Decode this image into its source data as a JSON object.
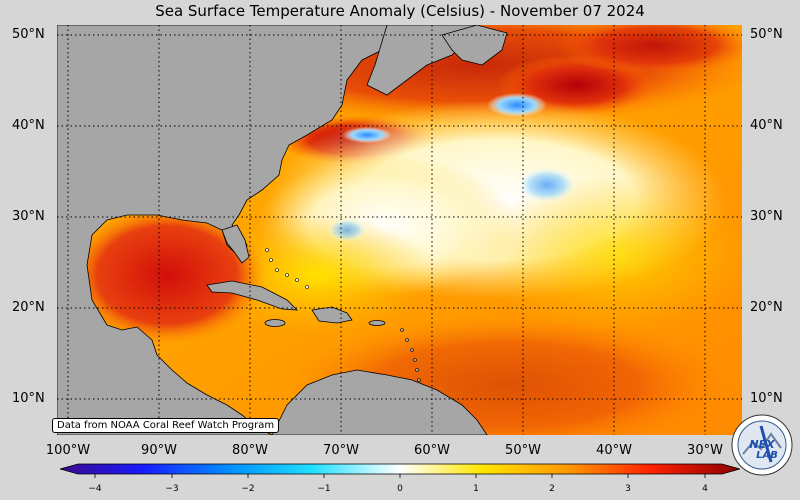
{
  "title": "Sea Surface Temperature Anomaly (Celsius) - November 07 2024",
  "lat_labels": [
    "50°N",
    "40°N",
    "30°N",
    "20°N",
    "10°N"
  ],
  "lon_labels": [
    "100°W",
    "90°W",
    "80°W",
    "70°W",
    "60°W",
    "50°W",
    "40°W",
    "30°W"
  ],
  "credit": "Data from NOAA Coral Reef Watch Program",
  "colorbar": {
    "ticks": [
      "−4",
      "−3",
      "−2",
      "−1",
      "0",
      "1",
      "2",
      "3",
      "4"
    ],
    "min": -4,
    "max": 4
  },
  "logo_text": "NEX LAB",
  "colors": {
    "land": "#a6a6a6",
    "background": "#d6d6d6",
    "warm": "#e34a1a",
    "hot": "#b0000a",
    "neutral": "#ffffff",
    "cool": "#00a0ff"
  }
}
